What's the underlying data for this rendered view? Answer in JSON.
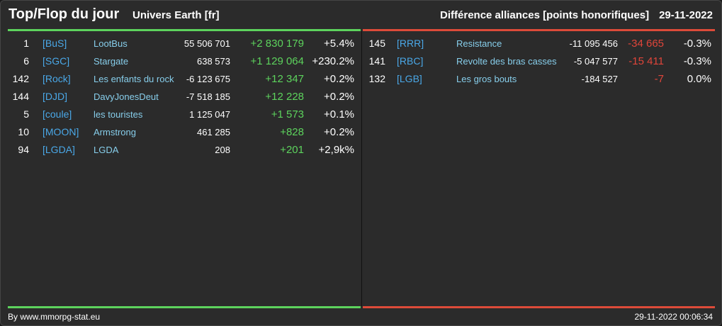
{
  "header": {
    "title": "Top/Flop du jour",
    "subtitle": "Univers Earth [fr]",
    "description": "Différence alliances [points honorifiques]",
    "date": "29-11-2022"
  },
  "colors": {
    "top": "#5dd35d",
    "flop": "#dd4b39",
    "tag": "#4aa8e8",
    "name": "#87ceeb"
  },
  "top": [
    {
      "rank": "1",
      "tag": "[BuS]",
      "name": "LootBus",
      "points": "55 506 701",
      "diff": "+2 830 179",
      "pct": "+5.4%"
    },
    {
      "rank": "6",
      "tag": "[SGC]",
      "name": "Stargate",
      "points": "638 573",
      "diff": "+1 129 064",
      "pct": "+230.2%"
    },
    {
      "rank": "142",
      "tag": "[Rock]",
      "name": "Les enfants du rock",
      "points": "-6 123 675",
      "diff": "+12 347",
      "pct": "+0.2%"
    },
    {
      "rank": "144",
      "tag": "[DJD]",
      "name": "DavyJonesDeut",
      "points": "-7 518 185",
      "diff": "+12 228",
      "pct": "+0.2%"
    },
    {
      "rank": "5",
      "tag": "[coule]",
      "name": "les touristes",
      "points": "1 125 047",
      "diff": "+1 573",
      "pct": "+0.1%"
    },
    {
      "rank": "10",
      "tag": "[MOON]",
      "name": "Armstrong",
      "points": "461 285",
      "diff": "+828",
      "pct": "+0.2%"
    },
    {
      "rank": "94",
      "tag": "[LGDA]",
      "name": "LGDA",
      "points": "208",
      "diff": "+201",
      "pct": "+2,9k%"
    }
  ],
  "flop": [
    {
      "rank": "145",
      "tag": "[RRR]",
      "name": "Resistance",
      "points": "-11 095 456",
      "diff": "-34 665",
      "pct": "-0.3%"
    },
    {
      "rank": "141",
      "tag": "[RBC]",
      "name": "Revolte des bras casses",
      "points": "-5 047 577",
      "diff": "-15 411",
      "pct": "-0.3%"
    },
    {
      "rank": "132",
      "tag": "[LGB]",
      "name": "Les gros bouts",
      "points": "-184 527",
      "diff": "-7",
      "pct": "0.0%"
    }
  ],
  "footer": {
    "source": "By www.mmorpg-stat.eu",
    "timestamp": "29-11-2022 00:06:34"
  }
}
